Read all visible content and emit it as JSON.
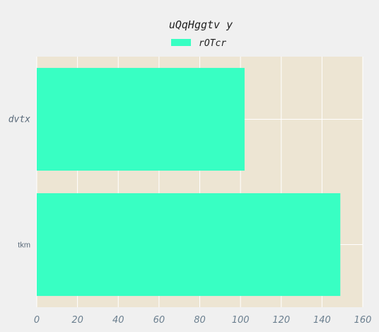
{
  "chart_data": {
    "type": "bar",
    "orientation": "horizontal",
    "title": "uQqHggtv y",
    "xlabel": "",
    "ylabel": "",
    "categories": [
      "tkm",
      "dvtx"
    ],
    "series": [
      {
        "name": "rOTcr",
        "values": [
          149,
          102
        ]
      }
    ],
    "xlim": [
      0,
      160
    ],
    "xticks": [
      0,
      20,
      40,
      60,
      80,
      100,
      120,
      140,
      160
    ],
    "grid": true,
    "legend": "top-center",
    "colors": {
      "background": "#f0f0f0",
      "plot_background": "#ede5d3",
      "grid": "#ffffff",
      "bar": "#38ffc3",
      "tick_text": "#6b7f8f"
    }
  }
}
